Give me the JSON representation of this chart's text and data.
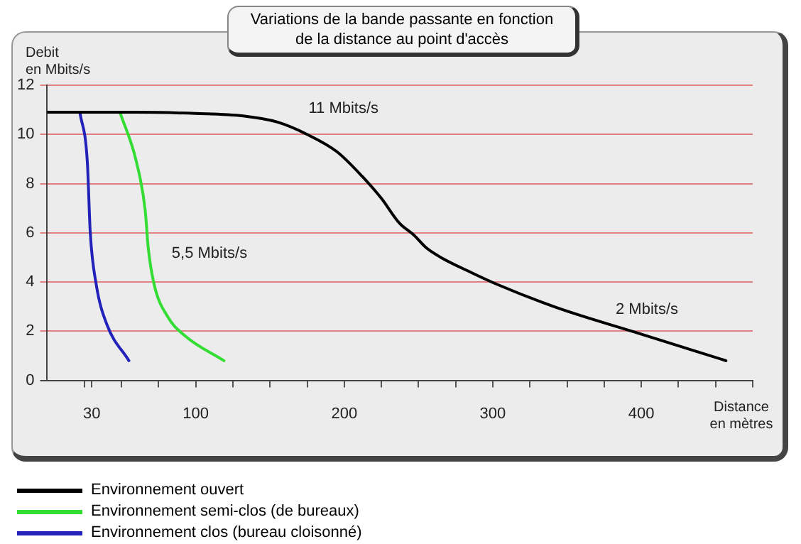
{
  "chart_data": {
    "type": "line",
    "title": "Variations de la bande passante en fonction\nde la distance au point d'accès",
    "ylabel": "Debit\nen Mbits/s",
    "xlabel": "Distance\nen mètres",
    "xlim": [
      0,
      475
    ],
    "xticks": [
      {
        "value": 25,
        "label": null
      },
      30,
      {
        "value": 50,
        "label": null
      },
      {
        "value": 75,
        "label": null
      },
      100,
      {
        "value": 125,
        "label": null
      },
      {
        "value": 150,
        "label": null
      },
      {
        "value": 175,
        "label": null
      },
      200,
      {
        "value": 225,
        "label": null
      },
      {
        "value": 250,
        "label": null
      },
      {
        "value": 275,
        "label": null
      },
      300,
      {
        "value": 325,
        "label": null
      },
      {
        "value": 350,
        "label": null
      },
      {
        "value": 375,
        "label": null
      },
      400,
      {
        "value": 425,
        "label": null
      },
      {
        "value": 450,
        "label": null
      },
      {
        "value": 475,
        "label": null
      }
    ],
    "ylim": [
      0,
      12
    ],
    "yticks": [
      0,
      2,
      4,
      6,
      8,
      10,
      12
    ],
    "grid": "y",
    "legend": "bottom",
    "marker": "none",
    "line_style": "solid",
    "series": [
      {
        "name": "Environnement ouvert",
        "color": "#000000",
        "x": [
          0,
          60,
          100,
          132,
          155,
          175,
          195,
          212,
          225,
          237,
          247,
          255,
          265,
          285,
          303,
          343,
          399,
          457
        ],
        "values": [
          10.9,
          10.9,
          10.85,
          10.75,
          10.5,
          10.0,
          9.3,
          8.3,
          7.4,
          6.4,
          5.9,
          5.4,
          5.0,
          4.4,
          3.9,
          2.96,
          1.9,
          0.8
        ]
      },
      {
        "name": "Environnement semi-clos (de bureaux)",
        "color": "#33dd33",
        "x": [
          49,
          60,
          66,
          68,
          72,
          81,
          93,
          119
        ],
        "values": [
          10.9,
          8.9,
          6.9,
          5.4,
          3.9,
          2.6,
          1.8,
          0.8
        ]
      },
      {
        "name": "Environnement clos (bureau cloisonné)",
        "color": "#2222bb",
        "x": [
          22,
          27,
          29,
          33,
          40,
          55
        ],
        "values": [
          10.9,
          8.9,
          6.0,
          3.9,
          2.3,
          0.8
        ]
      }
    ],
    "annotations": [
      "11 Mbits/s",
      "5,5 Mbits/s",
      "2 Mbits/s"
    ]
  }
}
